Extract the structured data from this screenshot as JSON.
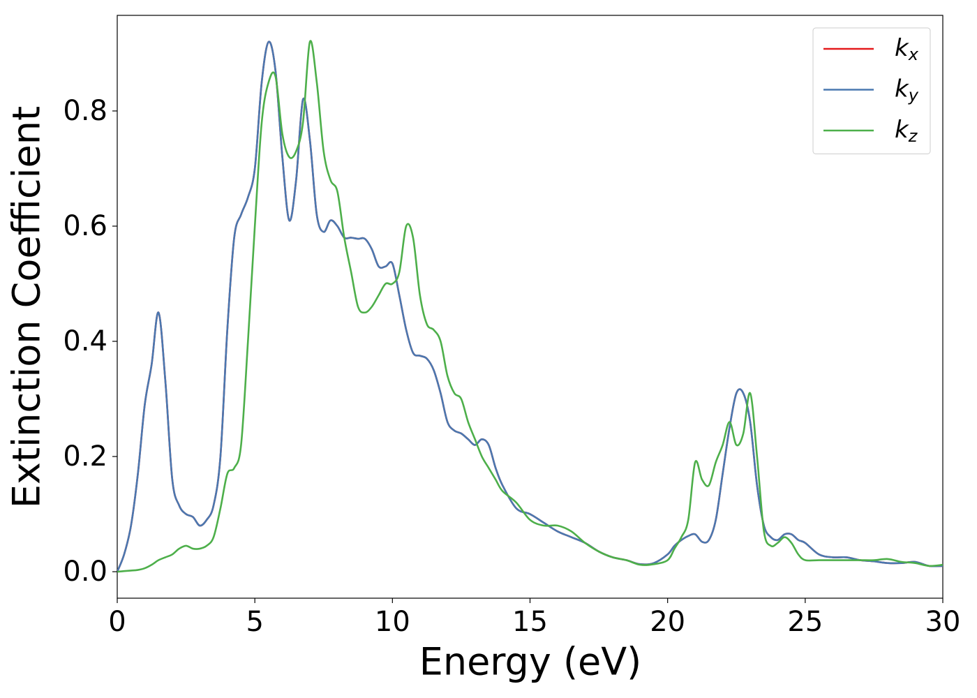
{
  "chart_data": {
    "type": "line",
    "xlabel": "Energy (eV)",
    "ylabel": "Extinction Coefficient",
    "xlim": [
      0,
      30
    ],
    "ylim": [
      -0.046,
      0.966
    ],
    "xticks": [
      0,
      5,
      10,
      15,
      20,
      25,
      30
    ],
    "yticks": [
      {
        "value": 0,
        "label": "0.0"
      },
      0.2,
      0.4,
      0.6,
      0.8
    ],
    "grid": false,
    "legend": "upper right",
    "x": [
      0,
      0.25,
      0.5,
      0.75,
      1,
      1.25,
      1.5,
      1.75,
      2,
      2.25,
      2.5,
      2.75,
      3,
      3.25,
      3.5,
      3.75,
      4,
      4.25,
      4.5,
      4.75,
      5,
      5.25,
      5.5,
      5.75,
      6,
      6.25,
      6.5,
      6.75,
      7,
      7.25,
      7.5,
      7.75,
      8,
      8.25,
      8.5,
      8.75,
      9,
      9.25,
      9.5,
      9.75,
      10,
      10.25,
      10.5,
      10.75,
      11,
      11.25,
      11.5,
      11.75,
      12,
      12.25,
      12.5,
      12.75,
      13,
      13.25,
      13.5,
      13.75,
      14,
      14.5,
      15,
      15.5,
      16,
      16.5,
      17,
      17.5,
      18,
      18.5,
      19,
      19.5,
      20,
      20.25,
      20.5,
      20.75,
      21,
      21.25,
      21.5,
      21.75,
      22,
      22.25,
      22.5,
      22.75,
      23,
      23.25,
      23.5,
      23.75,
      24,
      24.25,
      24.5,
      24.75,
      25,
      25.5,
      26,
      26.5,
      27,
      27.5,
      28,
      28.5,
      29,
      29.5,
      30
    ],
    "series": [
      {
        "name": "kx",
        "color": "#e41a1c",
        "values": [
          0,
          0.03,
          0.08,
          0.17,
          0.29,
          0.36,
          0.45,
          0.33,
          0.16,
          0.115,
          0.1,
          0.095,
          0.08,
          0.09,
          0.115,
          0.2,
          0.42,
          0.58,
          0.62,
          0.65,
          0.7,
          0.85,
          0.92,
          0.87,
          0.72,
          0.61,
          0.68,
          0.82,
          0.75,
          0.62,
          0.59,
          0.61,
          0.6,
          0.58,
          0.58,
          0.578,
          0.578,
          0.56,
          0.53,
          0.53,
          0.535,
          0.48,
          0.42,
          0.38,
          0.375,
          0.37,
          0.35,
          0.31,
          0.26,
          0.245,
          0.24,
          0.23,
          0.22,
          0.23,
          0.22,
          0.18,
          0.15,
          0.11,
          0.1,
          0.085,
          0.07,
          0.06,
          0.05,
          0.035,
          0.025,
          0.02,
          0.013,
          0.015,
          0.03,
          0.045,
          0.055,
          0.062,
          0.065,
          0.052,
          0.055,
          0.09,
          0.17,
          0.25,
          0.31,
          0.31,
          0.26,
          0.15,
          0.08,
          0.06,
          0.055,
          0.065,
          0.065,
          0.055,
          0.05,
          0.03,
          0.025,
          0.025,
          0.02,
          0.018,
          0.015,
          0.015,
          0.017,
          0.01,
          0.01
        ]
      },
      {
        "name": "ky",
        "color": "#4a78b0",
        "values": [
          0,
          0.03,
          0.08,
          0.17,
          0.29,
          0.36,
          0.45,
          0.33,
          0.16,
          0.115,
          0.1,
          0.095,
          0.08,
          0.09,
          0.115,
          0.2,
          0.42,
          0.58,
          0.62,
          0.65,
          0.7,
          0.85,
          0.92,
          0.87,
          0.72,
          0.61,
          0.68,
          0.82,
          0.75,
          0.62,
          0.59,
          0.61,
          0.6,
          0.58,
          0.58,
          0.578,
          0.578,
          0.56,
          0.53,
          0.53,
          0.535,
          0.48,
          0.42,
          0.38,
          0.375,
          0.37,
          0.35,
          0.31,
          0.26,
          0.245,
          0.24,
          0.23,
          0.22,
          0.23,
          0.22,
          0.18,
          0.15,
          0.11,
          0.1,
          0.085,
          0.07,
          0.06,
          0.05,
          0.035,
          0.025,
          0.02,
          0.013,
          0.015,
          0.03,
          0.045,
          0.055,
          0.062,
          0.065,
          0.052,
          0.055,
          0.09,
          0.17,
          0.25,
          0.31,
          0.31,
          0.26,
          0.15,
          0.08,
          0.06,
          0.055,
          0.065,
          0.065,
          0.055,
          0.05,
          0.03,
          0.025,
          0.025,
          0.02,
          0.018,
          0.015,
          0.015,
          0.017,
          0.01,
          0.01
        ]
      },
      {
        "name": "kz",
        "color": "#4daf4a",
        "values": [
          0,
          0.001,
          0.002,
          0.003,
          0.006,
          0.012,
          0.02,
          0.025,
          0.03,
          0.04,
          0.045,
          0.04,
          0.04,
          0.045,
          0.06,
          0.11,
          0.17,
          0.18,
          0.22,
          0.4,
          0.6,
          0.78,
          0.85,
          0.86,
          0.76,
          0.72,
          0.73,
          0.78,
          0.92,
          0.85,
          0.73,
          0.68,
          0.66,
          0.58,
          0.52,
          0.46,
          0.45,
          0.46,
          0.48,
          0.5,
          0.5,
          0.52,
          0.6,
          0.58,
          0.48,
          0.43,
          0.42,
          0.4,
          0.34,
          0.31,
          0.3,
          0.26,
          0.23,
          0.2,
          0.18,
          0.16,
          0.14,
          0.12,
          0.09,
          0.08,
          0.08,
          0.07,
          0.05,
          0.035,
          0.025,
          0.02,
          0.012,
          0.013,
          0.02,
          0.04,
          0.06,
          0.09,
          0.19,
          0.16,
          0.15,
          0.19,
          0.22,
          0.26,
          0.22,
          0.24,
          0.31,
          0.2,
          0.07,
          0.045,
          0.05,
          0.06,
          0.05,
          0.03,
          0.02,
          0.02,
          0.02,
          0.02,
          0.02,
          0.02,
          0.022,
          0.017,
          0.015,
          0.01,
          0.012
        ]
      }
    ]
  }
}
